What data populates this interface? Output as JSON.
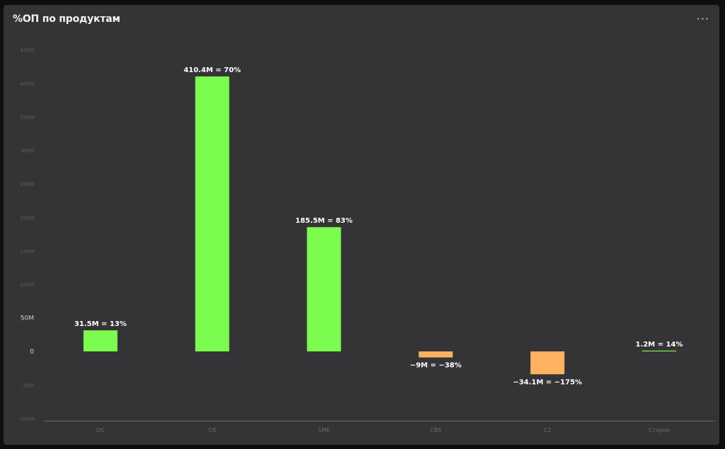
{
  "header": {
    "title": "%ОП по продуктам",
    "menu_icon": "more-horizontal-icon",
    "menu_glyph": "···"
  },
  "chart_data": {
    "type": "bar",
    "categories": [
      "DC",
      "CR",
      "SME",
      "CBS",
      "C2",
      "Сторно"
    ],
    "values": [
      31.5,
      410.4,
      185.5,
      -9,
      -34.1,
      1.2
    ],
    "data_labels": [
      "31.5M = 13%",
      "410.4M = 70%",
      "185.5M = 83%",
      "−9M = −38%",
      "−34.1M = −175%",
      "1.2M = 14%"
    ],
    "y_ticks": [
      "-100M",
      "-50M",
      "0",
      "50M",
      "100M",
      "150M",
      "200M",
      "250M",
      "300M",
      "350M",
      "400M",
      "450M"
    ],
    "y_tick_values": [
      -100,
      -50,
      0,
      50,
      100,
      150,
      200,
      250,
      300,
      350,
      400,
      450
    ],
    "ylim": [
      -100,
      450
    ],
    "title": "%ОП по продуктам",
    "xlabel": "",
    "ylabel": "",
    "colors": {
      "positive": "#7cfc4f",
      "negative": "#ffb25f",
      "axis": "#6a6a6c"
    },
    "grid": false,
    "legend": "none"
  }
}
